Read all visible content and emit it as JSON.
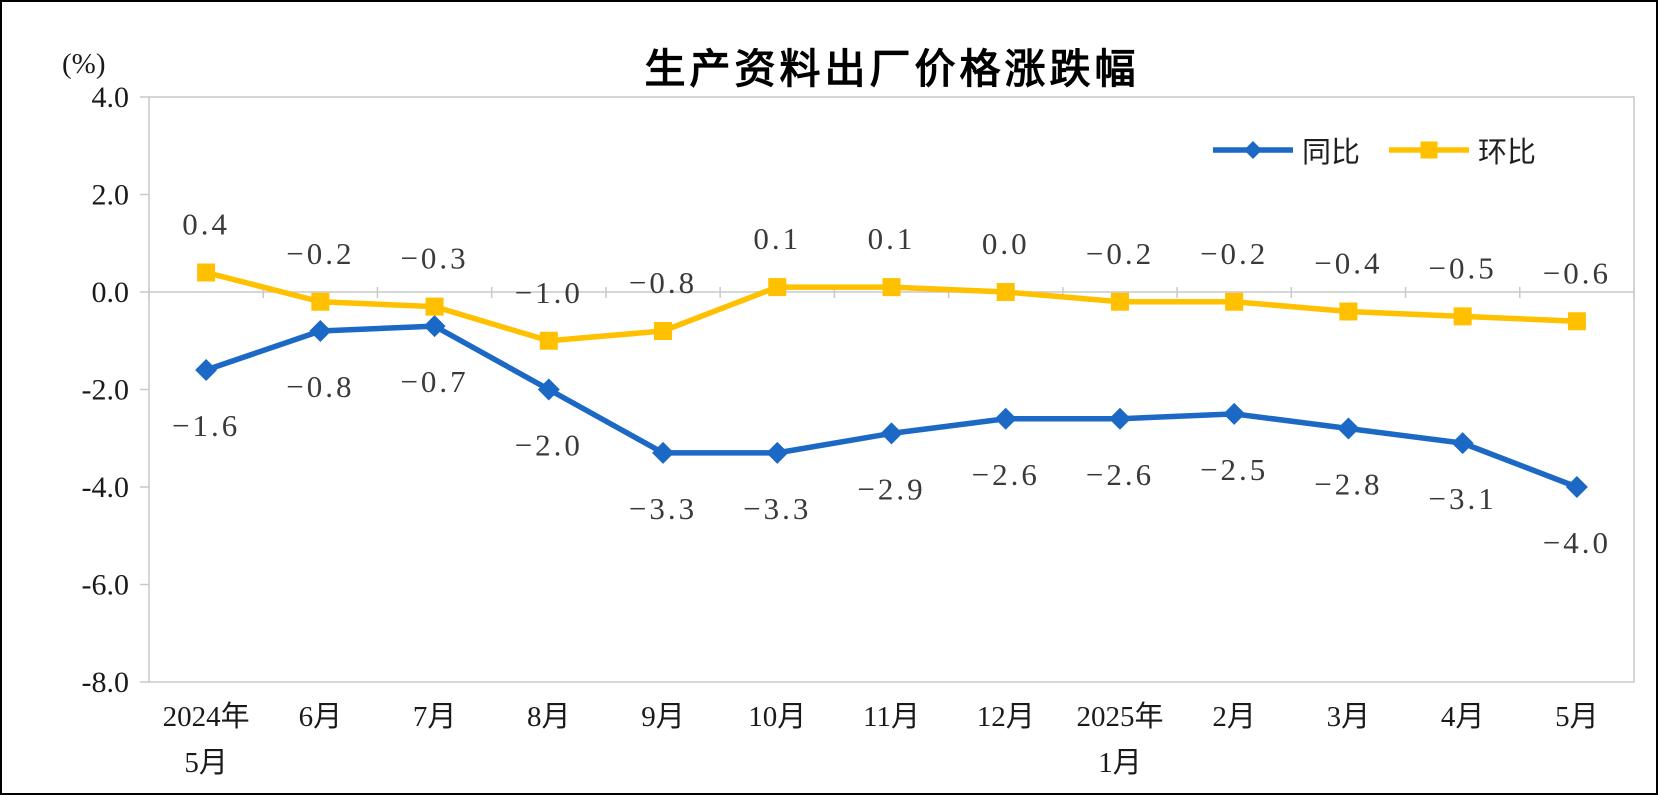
{
  "chart_data": {
    "type": "line",
    "title": "生产资料出厂价格涨跌幅",
    "unit_label": "(%)",
    "categories": [
      "2024年\n5月",
      "6月",
      "7月",
      "8月",
      "9月",
      "10月",
      "11月",
      "12月",
      "2025年\n1月",
      "2月",
      "3月",
      "4月",
      "5月"
    ],
    "series": [
      {
        "name": "同比",
        "color": "#1B69C5",
        "marker": "diamond",
        "label_position": "below",
        "values": [
          -1.6,
          -0.8,
          -0.7,
          -2.0,
          -3.3,
          -3.3,
          -2.9,
          -2.6,
          -2.6,
          -2.5,
          -2.8,
          -3.1,
          -4.0
        ]
      },
      {
        "name": "环比",
        "color": "#FFC000",
        "marker": "square",
        "label_position": "above",
        "values": [
          0.4,
          -0.2,
          -0.3,
          -1.0,
          -0.8,
          0.1,
          0.1,
          0.0,
          -0.2,
          -0.2,
          -0.4,
          -0.5,
          -0.6
        ]
      }
    ],
    "ylim": [
      -8.0,
      4.0
    ],
    "ytick_step": 2.0,
    "ytick_labels": [
      "4.0",
      "2.0",
      "0.0",
      "-2.0",
      "-4.0",
      "-6.0",
      "-8.0"
    ],
    "grid": "zero-line-only",
    "legend_position": "top-right",
    "axis_color": "#C9C9C9",
    "text_color": "#1a1a1a",
    "data_label_color": "#3a3a3a"
  }
}
